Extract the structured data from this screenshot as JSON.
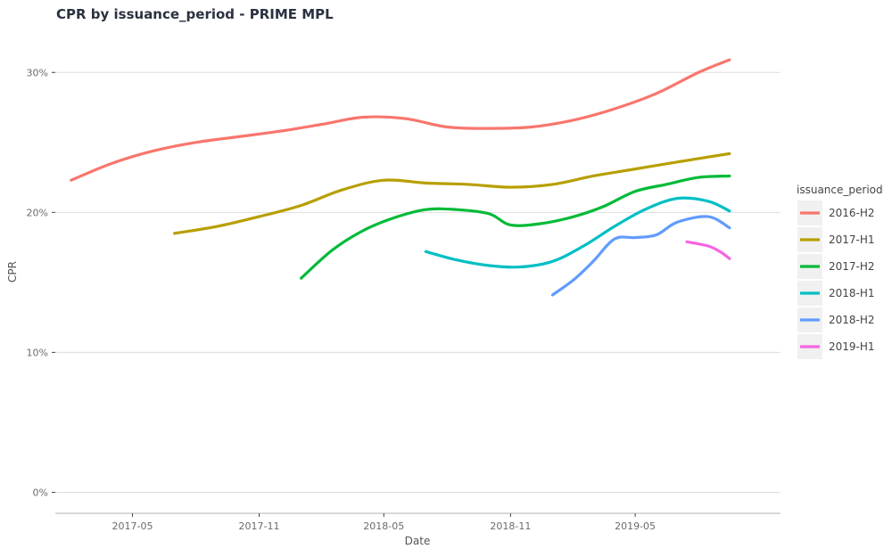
{
  "chart_data": {
    "type": "line",
    "title": "CPR by issuance_period - PRIME MPL",
    "xlabel": "Date",
    "ylabel": "CPR",
    "x_ticks": [
      {
        "label": "2017-05",
        "date": "2017-05-01"
      },
      {
        "label": "2017-11",
        "date": "2017-11-01"
      },
      {
        "label": "2018-05",
        "date": "2018-05-01"
      },
      {
        "label": "2018-11",
        "date": "2018-11-01"
      },
      {
        "label": "2019-05",
        "date": "2019-05-01"
      }
    ],
    "y_ticks": [
      {
        "label": "0%",
        "value": 0
      },
      {
        "label": "10%",
        "value": 10
      },
      {
        "label": "20%",
        "value": 20
      },
      {
        "label": "30%",
        "value": 30
      }
    ],
    "xlim": [
      "2017-01-09",
      "2019-11-28"
    ],
    "ylim": [
      -1.5,
      32.5
    ],
    "grid": true,
    "legend": {
      "title": "issuance_period",
      "position": "right"
    },
    "series": [
      {
        "name": "2016-H2",
        "color": "#F8766D",
        "points": [
          [
            "2017-02-01",
            22.3
          ],
          [
            "2017-04-01",
            23.5
          ],
          [
            "2017-06-01",
            24.4
          ],
          [
            "2017-08-01",
            25.0
          ],
          [
            "2017-10-01",
            25.4
          ],
          [
            "2017-12-01",
            25.8
          ],
          [
            "2018-02-01",
            26.3
          ],
          [
            "2018-04-01",
            26.8
          ],
          [
            "2018-06-01",
            26.7
          ],
          [
            "2018-08-01",
            26.1
          ],
          [
            "2018-10-01",
            26.0
          ],
          [
            "2018-12-01",
            26.1
          ],
          [
            "2019-02-01",
            26.6
          ],
          [
            "2019-04-01",
            27.4
          ],
          [
            "2019-06-01",
            28.5
          ],
          [
            "2019-08-01",
            30.0
          ],
          [
            "2019-09-15",
            30.9
          ]
        ]
      },
      {
        "name": "2017-H1",
        "color": "#B79F00",
        "points": [
          [
            "2017-07-01",
            18.5
          ],
          [
            "2017-09-01",
            19.0
          ],
          [
            "2017-11-01",
            19.7
          ],
          [
            "2018-01-01",
            20.5
          ],
          [
            "2018-03-01",
            21.6
          ],
          [
            "2018-05-01",
            22.3
          ],
          [
            "2018-07-01",
            22.1
          ],
          [
            "2018-09-01",
            22.0
          ],
          [
            "2018-11-01",
            21.8
          ],
          [
            "2019-01-01",
            22.0
          ],
          [
            "2019-03-01",
            22.6
          ],
          [
            "2019-05-01",
            23.1
          ],
          [
            "2019-07-01",
            23.6
          ],
          [
            "2019-09-15",
            24.2
          ]
        ]
      },
      {
        "name": "2017-H2",
        "color": "#00BA38",
        "points": [
          [
            "2018-01-01",
            15.3
          ],
          [
            "2018-02-15",
            17.3
          ],
          [
            "2018-04-01",
            18.7
          ],
          [
            "2018-05-15",
            19.6
          ],
          [
            "2018-07-01",
            20.2
          ],
          [
            "2018-08-15",
            20.2
          ],
          [
            "2018-10-01",
            19.9
          ],
          [
            "2018-11-01",
            19.1
          ],
          [
            "2018-12-15",
            19.2
          ],
          [
            "2019-02-01",
            19.7
          ],
          [
            "2019-03-15",
            20.4
          ],
          [
            "2019-05-01",
            21.5
          ],
          [
            "2019-06-15",
            22.0
          ],
          [
            "2019-08-01",
            22.5
          ],
          [
            "2019-09-15",
            22.6
          ]
        ]
      },
      {
        "name": "2018-H1",
        "color": "#00BFC4",
        "points": [
          [
            "2018-07-01",
            17.2
          ],
          [
            "2018-08-15",
            16.6
          ],
          [
            "2018-10-01",
            16.2
          ],
          [
            "2018-11-15",
            16.1
          ],
          [
            "2019-01-01",
            16.5
          ],
          [
            "2019-02-15",
            17.6
          ],
          [
            "2019-04-01",
            19.0
          ],
          [
            "2019-05-15",
            20.2
          ],
          [
            "2019-07-01",
            21.0
          ],
          [
            "2019-08-15",
            20.8
          ],
          [
            "2019-09-15",
            20.1
          ]
        ]
      },
      {
        "name": "2018-H2",
        "color": "#619CFF",
        "points": [
          [
            "2019-01-01",
            14.1
          ],
          [
            "2019-02-01",
            15.2
          ],
          [
            "2019-03-01",
            16.5
          ],
          [
            "2019-04-01",
            18.1
          ],
          [
            "2019-05-01",
            18.2
          ],
          [
            "2019-06-01",
            18.4
          ],
          [
            "2019-07-01",
            19.3
          ],
          [
            "2019-08-15",
            19.7
          ],
          [
            "2019-09-15",
            18.9
          ]
        ]
      },
      {
        "name": "2019-H1",
        "color": "#F564E3",
        "points": [
          [
            "2019-07-15",
            17.9
          ],
          [
            "2019-08-15",
            17.6
          ],
          [
            "2019-09-01",
            17.2
          ],
          [
            "2019-09-15",
            16.7
          ]
        ]
      }
    ]
  }
}
